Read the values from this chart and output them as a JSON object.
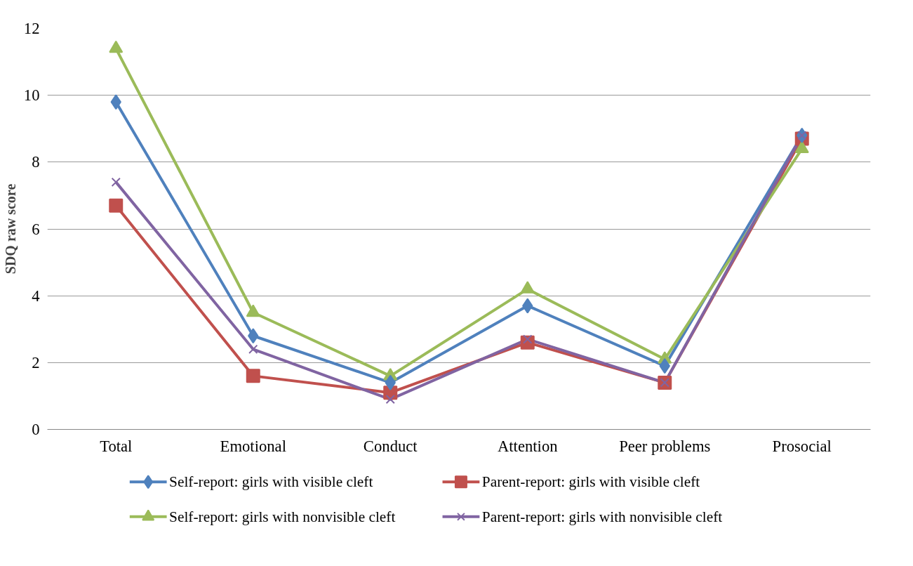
{
  "chart_data": {
    "type": "line",
    "ylabel": "SDQ raw score",
    "categories": [
      "Total",
      "Emotional",
      "Conduct",
      "Attention",
      "Peer problems",
      "Prosocial"
    ],
    "series": [
      {
        "name": "Self-report: girls with visible cleft",
        "color": "#4f81bd",
        "marker": "diamond",
        "values": [
          9.8,
          2.8,
          1.4,
          3.7,
          1.9,
          8.8
        ]
      },
      {
        "name": "Parent-report: girls with visible cleft",
        "color": "#c0504d",
        "marker": "square",
        "values": [
          6.7,
          1.6,
          1.1,
          2.6,
          1.4,
          8.7
        ]
      },
      {
        "name": "Self-report: girls with nonvisible cleft",
        "color": "#9bbb59",
        "marker": "triangle",
        "values": [
          11.4,
          3.5,
          1.6,
          4.2,
          2.1,
          8.4
        ]
      },
      {
        "name": "Parent-report: girls with nonvisible cleft",
        "color": "#8064a2",
        "marker": "cross",
        "values": [
          7.4,
          2.4,
          0.9,
          2.7,
          1.4,
          8.8
        ]
      }
    ],
    "ylim": [
      0,
      12
    ],
    "yticks": [
      0,
      2,
      4,
      6,
      8,
      10,
      12
    ],
    "grid": "y",
    "legend": "bottom"
  }
}
